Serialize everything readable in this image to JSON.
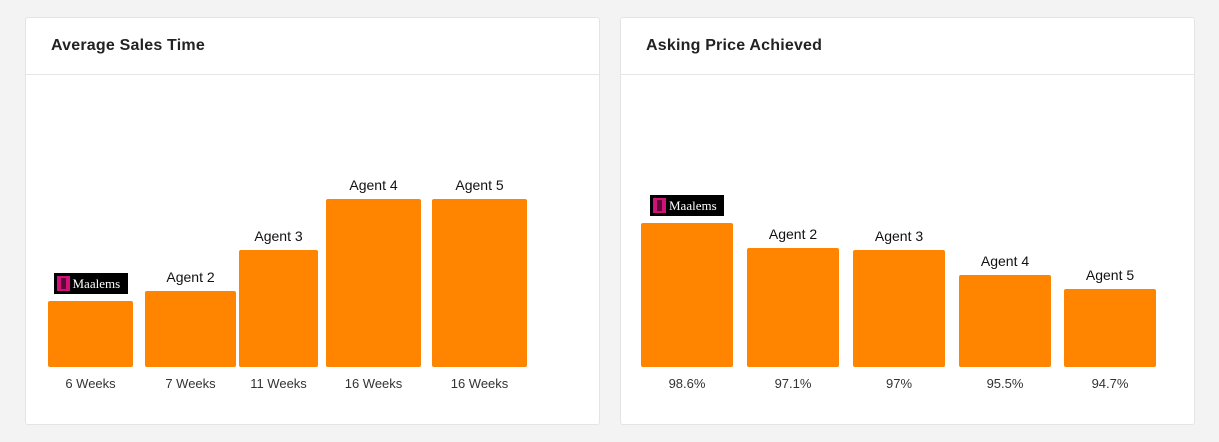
{
  "chart_data": [
    {
      "type": "bar",
      "title": "Average Sales Time",
      "categories": [
        "Maalems",
        "Agent 2",
        "Agent 3",
        "Agent 4",
        "Agent 5"
      ],
      "values": [
        6,
        7,
        11,
        16,
        16
      ],
      "value_labels": [
        "6 Weeks",
        "7 Weeks",
        "11 Weeks",
        "16 Weeks",
        "16 Weeks"
      ],
      "unit": "Weeks",
      "bar_color": "#ff8500",
      "grid": false,
      "legend": "none"
    },
    {
      "type": "bar",
      "title": "Asking Price Achieved",
      "categories": [
        "Maalems",
        "Agent 2",
        "Agent 3",
        "Agent 4",
        "Agent 5"
      ],
      "values": [
        98.6,
        97.1,
        97,
        95.5,
        94.7
      ],
      "value_labels": [
        "98.6%",
        "97.1%",
        "97%",
        "95.5%",
        "94.7%"
      ],
      "unit": "%",
      "bar_color": "#ff8500",
      "grid": false,
      "legend": "none"
    }
  ]
}
